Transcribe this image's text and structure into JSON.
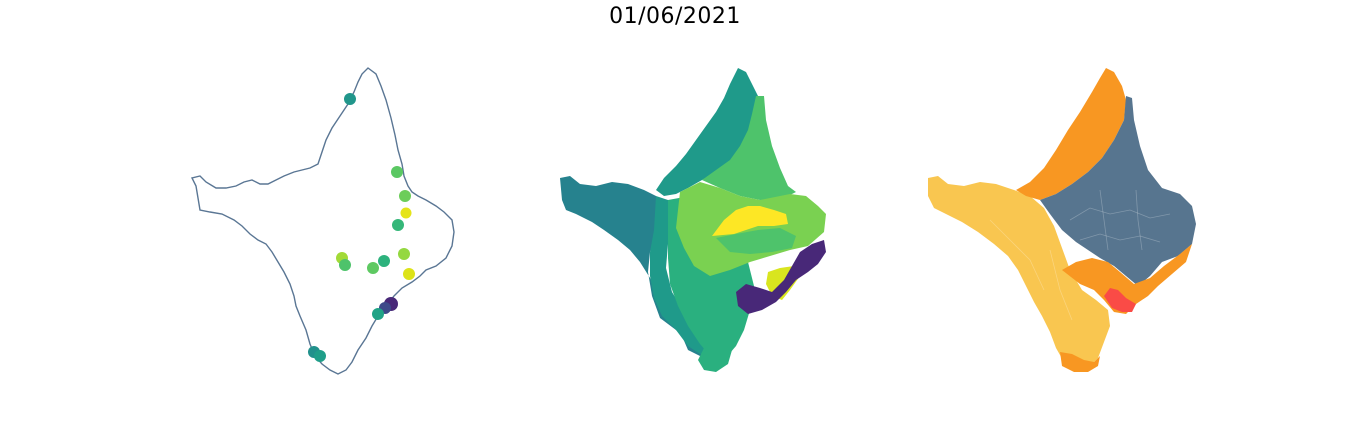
{
  "figure": {
    "title": "01/06/2021"
  },
  "panels": [
    {
      "type": "point-map",
      "outline_color": "#5a7694",
      "points": [
        {
          "color": "#21968b"
        },
        {
          "color": "#5bc863"
        },
        {
          "color": "#6ccd5a"
        },
        {
          "color": "#e5e419"
        },
        {
          "color": "#35b779"
        },
        {
          "color": "#a2da37"
        },
        {
          "color": "#2db27d"
        },
        {
          "color": "#5ec962"
        },
        {
          "color": "#4ec36b"
        },
        {
          "color": "#94d840"
        },
        {
          "color": "#dde318"
        },
        {
          "color": "#482878"
        },
        {
          "color": "#3e4989"
        },
        {
          "color": "#20a386"
        },
        {
          "color": "#21918c"
        },
        {
          "color": "#1f9e89"
        }
      ]
    },
    {
      "type": "choropleth",
      "palette": [
        "#26828e",
        "#1f9a8a",
        "#2ab07f",
        "#4ec36b",
        "#7ad151",
        "#fde725",
        "#d9e51f",
        "#482878"
      ]
    },
    {
      "type": "choropleth",
      "palette": [
        "#f9c650",
        "#f89722",
        "#57758f",
        "#fa4b46"
      ]
    }
  ]
}
